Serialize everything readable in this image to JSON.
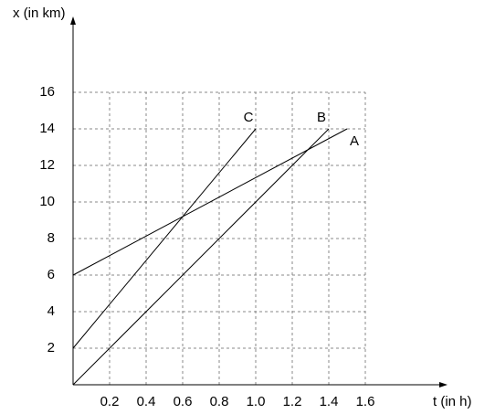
{
  "chart_data": {
    "type": "line",
    "x_label": "t (in h)",
    "y_label": "x (in km)",
    "series": [
      {
        "name": "A",
        "color": "#000000",
        "x": [
          0,
          1.5
        ],
        "values": [
          6,
          14
        ]
      },
      {
        "name": "B",
        "color": "#000000",
        "x": [
          0,
          1.4
        ],
        "values": [
          0,
          14
        ]
      },
      {
        "name": "C",
        "color": "#000000",
        "x": [
          0,
          1.0
        ],
        "values": [
          2,
          14
        ]
      }
    ],
    "xlim": [
      0,
      2.05
    ],
    "ylim": [
      0,
      20.15
    ],
    "xticks": [
      0.2,
      0.4,
      0.6,
      0.8,
      {
        "value": 1,
        "label": "1.0"
      },
      1.2,
      1.4,
      1.6
    ],
    "yticks": [
      2,
      4,
      6,
      8,
      10,
      12,
      14,
      16
    ],
    "grid": true
  }
}
